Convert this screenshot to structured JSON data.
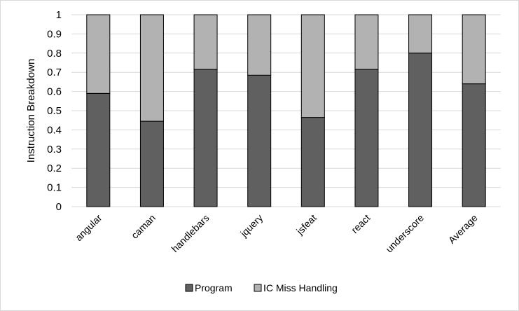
{
  "chart_data": {
    "type": "bar",
    "stacked": true,
    "categories": [
      "angular",
      "caman",
      "handlebars",
      "jquery",
      "jsfeat",
      "react",
      "underscore",
      "Average"
    ],
    "series": [
      {
        "name": "Program",
        "values": [
          0.59,
          0.445,
          0.715,
          0.685,
          0.465,
          0.715,
          0.8,
          0.64
        ]
      },
      {
        "name": "IC Miss Handling",
        "values": [
          0.41,
          0.555,
          0.285,
          0.315,
          0.535,
          0.285,
          0.2,
          0.36
        ]
      }
    ],
    "colors": {
      "Program": "#606060",
      "IC Miss Handling": "#b2b2b2",
      "grid": "#d9d9d9"
    },
    "ylabel": "Instruction Breakdown",
    "xlabel": "",
    "ylim": [
      0,
      1
    ],
    "yticks": [
      "0",
      "0.1",
      "0.2",
      "0.3",
      "0.4",
      "0.5",
      "0.6",
      "0.7",
      "0.8",
      "0.9",
      "1"
    ],
    "grid": true,
    "legend": "bottom"
  }
}
